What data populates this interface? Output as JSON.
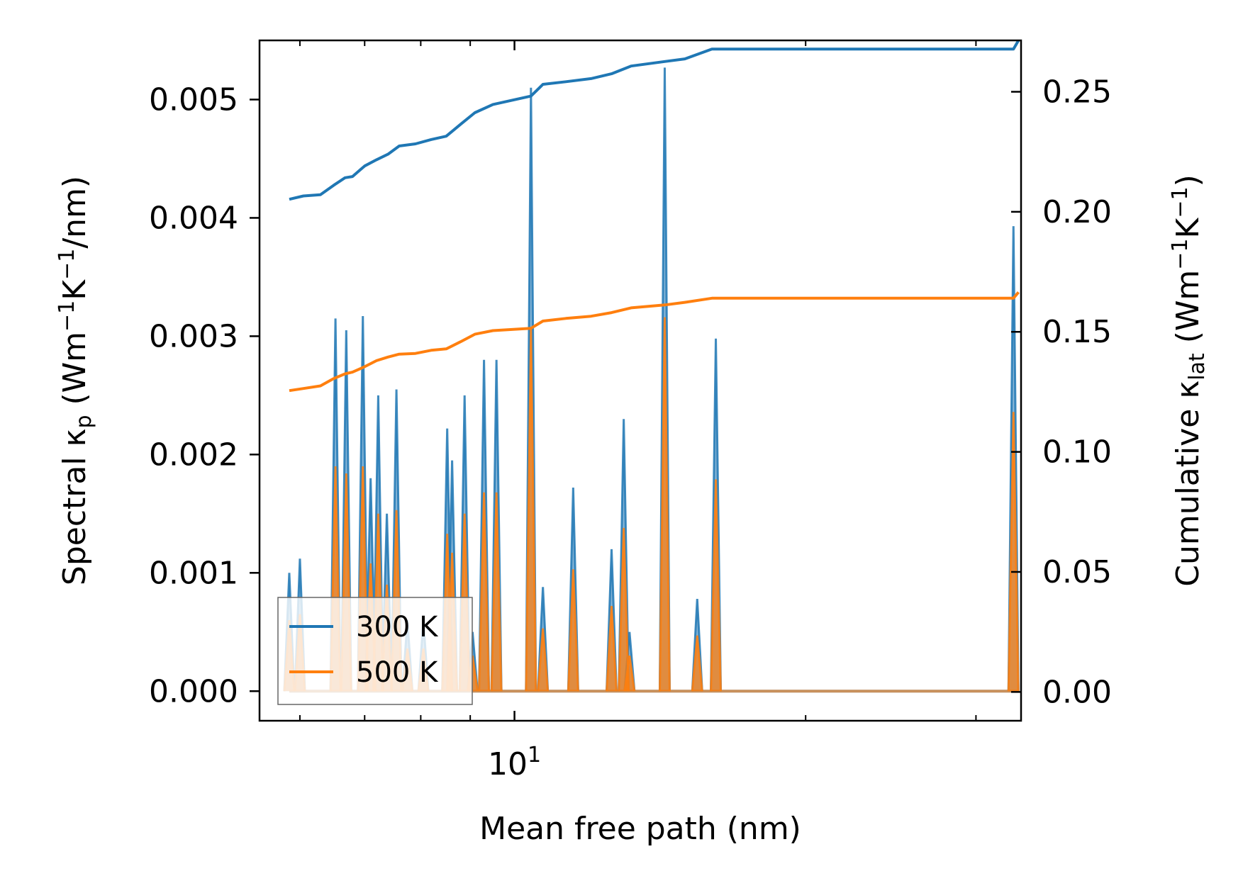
{
  "chart_data": {
    "type": "line",
    "xscale": "log",
    "xlabel": "Mean free path (nm)",
    "ylabel_left": "Spectral κp (Wm−1K−1/nm)",
    "ylabel_right": "Cumulative κlat (Wm−1K−1)",
    "x_tick_labels": [
      {
        "value": 10,
        "label": "10¹"
      }
    ],
    "left_ticks": [
      0.0,
      0.001,
      0.002,
      0.003,
      0.004,
      0.005
    ],
    "left_tick_labels": [
      "0.000",
      "0.001",
      "0.002",
      "0.003",
      "0.004",
      "0.005"
    ],
    "right_ticks": [
      0.0,
      0.05,
      0.1,
      0.15,
      0.2,
      0.25
    ],
    "right_tick_labels": [
      "0.00",
      "0.05",
      "0.10",
      "0.15",
      "0.20",
      "0.25"
    ],
    "xlim": [
      5.45,
      33.4
    ],
    "ylim_left": [
      -0.00025,
      0.0055
    ],
    "ylim_right": [
      -0.012,
      0.2714
    ],
    "legend": {
      "position": "lower-left",
      "entries": [
        {
          "name": "300 K",
          "color": "#1f77b4"
        },
        {
          "name": "500 K",
          "color": "#ff7f0e"
        }
      ]
    },
    "colors": {
      "s300": "#1f77b4",
      "s500": "#ff7f0e"
    },
    "spikes": [
      {
        "x": 5.85,
        "v300": 0.001,
        "v500": 0.0006
      },
      {
        "x": 6.0,
        "v300": 0.00112,
        "v500": 0.00065
      },
      {
        "x": 6.53,
        "v300": 0.00315,
        "v500": 0.0019
      },
      {
        "x": 6.7,
        "v300": 0.00305,
        "v500": 0.00184
      },
      {
        "x": 6.97,
        "v300": 0.00317,
        "v500": 0.0019
      },
      {
        "x": 7.1,
        "v300": 0.0018,
        "v500": 0.00108
      },
      {
        "x": 7.23,
        "v300": 0.0025,
        "v500": 0.0015
      },
      {
        "x": 7.38,
        "v300": 0.0015,
        "v500": 0.0009
      },
      {
        "x": 7.55,
        "v300": 0.00255,
        "v500": 0.00153
      },
      {
        "x": 7.75,
        "v300": 0.0006,
        "v500": 0.00036
      },
      {
        "x": 8.05,
        "v300": 0.0006,
        "v500": 0.00036
      },
      {
        "x": 8.52,
        "v300": 0.00222,
        "v500": 0.00133
      },
      {
        "x": 8.62,
        "v300": 0.00195,
        "v500": 0.00117
      },
      {
        "x": 8.88,
        "v300": 0.0025,
        "v500": 0.0015
      },
      {
        "x": 9.05,
        "v300": 0.0005,
        "v500": 0.0003
      },
      {
        "x": 9.3,
        "v300": 0.0028,
        "v500": 0.00168
      },
      {
        "x": 9.58,
        "v300": 0.0028,
        "v500": 0.00168
      },
      {
        "x": 10.4,
        "v300": 0.0051,
        "v500": 0.00306
      },
      {
        "x": 10.7,
        "v300": 0.00088,
        "v500": 0.00053
      },
      {
        "x": 11.5,
        "v300": 0.00172,
        "v500": 0.00103
      },
      {
        "x": 12.6,
        "v300": 0.0012,
        "v500": 0.00072
      },
      {
        "x": 12.97,
        "v300": 0.0023,
        "v500": 0.00138
      },
      {
        "x": 13.15,
        "v300": 0.0005,
        "v500": 0.0003
      },
      {
        "x": 14.3,
        "v300": 0.00527,
        "v500": 0.00316
      },
      {
        "x": 15.45,
        "v300": 0.00078,
        "v500": 0.00047
      },
      {
        "x": 16.15,
        "v300": 0.00298,
        "v500": 0.00179
      },
      {
        "x": 32.8,
        "v300": 0.00393,
        "v500": 0.00236
      }
    ],
    "cumulative_300K": {
      "x": [
        5.85,
        6.05,
        6.3,
        6.5,
        6.68,
        6.8,
        7.0,
        7.2,
        7.4,
        7.6,
        7.9,
        8.2,
        8.5,
        8.8,
        9.1,
        9.5,
        10.4,
        10.7,
        11.3,
        12.0,
        12.6,
        13.2,
        14.3,
        15.0,
        16.0,
        20.0,
        26.0,
        32.8,
        33.2
      ],
      "y": [
        0.2052,
        0.2066,
        0.2071,
        0.211,
        0.2142,
        0.2147,
        0.2191,
        0.2217,
        0.224,
        0.2274,
        0.2283,
        0.2301,
        0.2315,
        0.2365,
        0.2413,
        0.2447,
        0.2482,
        0.2531,
        0.2542,
        0.2555,
        0.2575,
        0.2607,
        0.2626,
        0.2637,
        0.2678,
        0.2678,
        0.2678,
        0.2678,
        0.2714
      ]
    },
    "cumulative_500K": {
      "x": [
        5.85,
        6.05,
        6.3,
        6.5,
        6.68,
        6.8,
        7.0,
        7.2,
        7.4,
        7.6,
        7.9,
        8.2,
        8.5,
        8.8,
        9.1,
        9.5,
        10.4,
        10.7,
        11.3,
        12.0,
        12.6,
        13.2,
        14.3,
        15.0,
        16.0,
        20.0,
        26.0,
        32.8,
        33.2
      ],
      "y": [
        0.1255,
        0.1264,
        0.1275,
        0.1305,
        0.1325,
        0.1332,
        0.1355,
        0.138,
        0.1395,
        0.1407,
        0.141,
        0.1423,
        0.1429,
        0.1459,
        0.149,
        0.1505,
        0.1515,
        0.1545,
        0.1556,
        0.1565,
        0.158,
        0.16,
        0.1612,
        0.1623,
        0.164,
        0.164,
        0.164,
        0.164,
        0.1665
      ]
    }
  }
}
